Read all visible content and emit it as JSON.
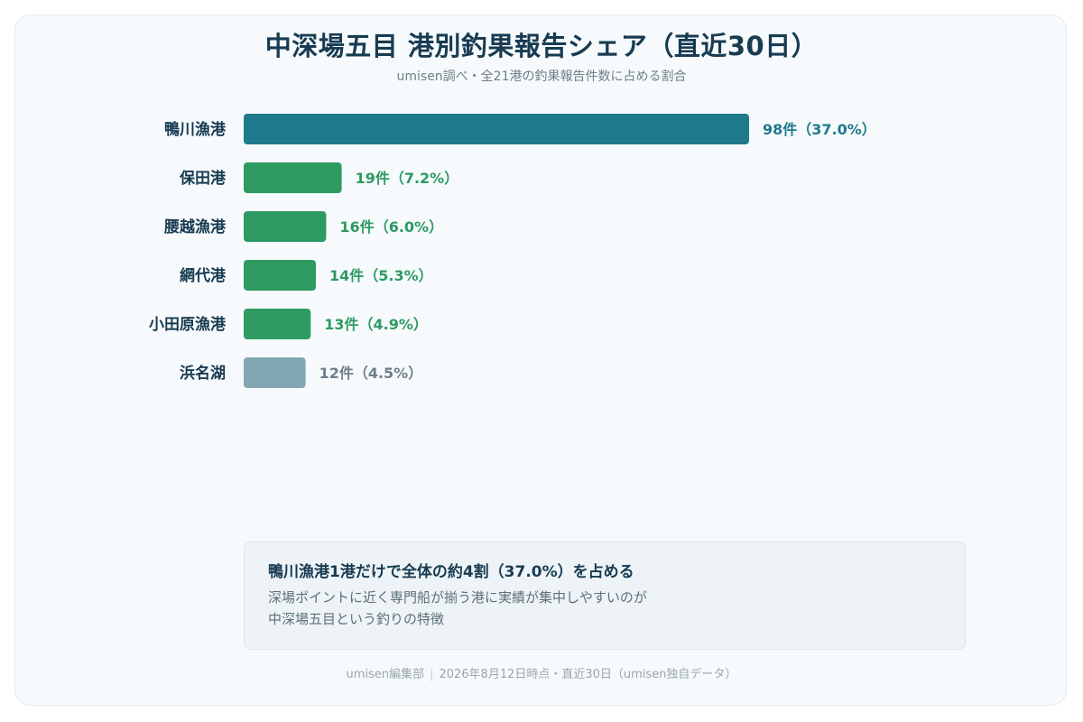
{
  "title": "中深場五目 港別釣果報告シェア（直近30日）",
  "subtitle": "umisen調べ・全21港の釣果報告件数に占める割合",
  "chart_data": {
    "type": "bar",
    "orientation": "horizontal",
    "title": "中深場五目 港別釣果報告シェア（直近30日）",
    "subtitle": "umisen調べ・全21港の釣果報告件数に占める割合",
    "categories": [
      "鴨川漁港",
      "保田港",
      "腰越漁港",
      "網代港",
      "小田原漁港",
      "浜名湖"
    ],
    "values": [
      98,
      19,
      16,
      14,
      13,
      12
    ],
    "value_labels": [
      "98件（37.0%）",
      "19件（7.2%）",
      "16件（6.0%）",
      "14件（5.3%）",
      "13件（4.9%）",
      "12件（4.5%）"
    ],
    "percentages": [
      37.0,
      7.2,
      6.0,
      5.3,
      4.9,
      4.5
    ],
    "bar_colors": [
      "#1e7a8c",
      "#2e9a62",
      "#2e9a62",
      "#2e9a62",
      "#2e9a62",
      "#82a7b2"
    ],
    "label_colors": [
      "#1e7a8c",
      "#2e9a62",
      "#2e9a62",
      "#2e9a62",
      "#2e9a62",
      "#6d7f89"
    ],
    "xlim": [
      0,
      98
    ],
    "grid": false,
    "xlabel": "",
    "ylabel": ""
  },
  "callout": {
    "title": "鴨川漁港1港だけで全体の約4割（37.0%）を占める",
    "line1": "深場ポイントに近く専門船が揃う港に実績が集中しやすいのが",
    "line2": "中深場五目という釣りの特徴"
  },
  "footer": {
    "source": "umisen編集部",
    "note": "2026年8月12日時点・直近30日（umisen独自データ）"
  }
}
